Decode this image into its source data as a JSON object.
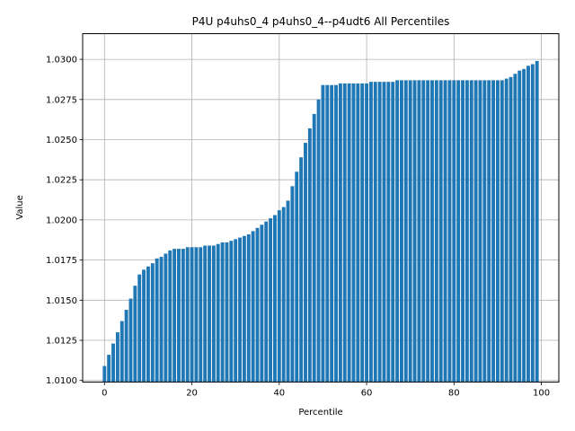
{
  "chart_data": {
    "type": "bar",
    "title": "P4U p4uhs0_4 p4uhs0_4--p4udt6 All Percentiles",
    "xlabel": "Percentile",
    "ylabel": "Value",
    "xlim": [
      -5,
      104
    ],
    "ylim": [
      1.0099,
      1.0316
    ],
    "grid": true,
    "color": "#1f77b4",
    "x_ticks": [
      0,
      20,
      40,
      60,
      80,
      100
    ],
    "x_tick_labels": [
      "0",
      "20",
      "40",
      "60",
      "80",
      "100"
    ],
    "y_ticks": [
      1.01,
      1.0125,
      1.015,
      1.0175,
      1.02,
      1.0225,
      1.025,
      1.0275,
      1.03
    ],
    "y_tick_labels": [
      "1.0100",
      "1.0125",
      "1.0150",
      "1.0175",
      "1.0200",
      "1.0225",
      "1.0250",
      "1.0275",
      "1.0300"
    ],
    "x": [
      0,
      1,
      2,
      3,
      4,
      5,
      6,
      7,
      8,
      9,
      10,
      11,
      12,
      13,
      14,
      15,
      16,
      17,
      18,
      19,
      20,
      21,
      22,
      23,
      24,
      25,
      26,
      27,
      28,
      29,
      30,
      31,
      32,
      33,
      34,
      35,
      36,
      37,
      38,
      39,
      40,
      41,
      42,
      43,
      44,
      45,
      46,
      47,
      48,
      49,
      50,
      51,
      52,
      53,
      54,
      55,
      56,
      57,
      58,
      59,
      60,
      61,
      62,
      63,
      64,
      65,
      66,
      67,
      68,
      69,
      70,
      71,
      72,
      73,
      74,
      75,
      76,
      77,
      78,
      79,
      80,
      81,
      82,
      83,
      84,
      85,
      86,
      87,
      88,
      89,
      90,
      91,
      92,
      93,
      94,
      95,
      96,
      97,
      98,
      99
    ],
    "values": [
      1.0109,
      1.0116,
      1.0123,
      1.013,
      1.0137,
      1.0144,
      1.0151,
      1.0159,
      1.0166,
      1.0169,
      1.0171,
      1.0173,
      1.0176,
      1.0177,
      1.0179,
      1.0181,
      1.0182,
      1.0182,
      1.0182,
      1.0183,
      1.0183,
      1.0183,
      1.0183,
      1.0184,
      1.0184,
      1.0184,
      1.0185,
      1.0186,
      1.0186,
      1.0187,
      1.0188,
      1.0189,
      1.019,
      1.0191,
      1.0193,
      1.0195,
      1.0197,
      1.0199,
      1.0201,
      1.0203,
      1.0206,
      1.0208,
      1.0212,
      1.0221,
      1.023,
      1.0239,
      1.0248,
      1.0257,
      1.0266,
      1.0275,
      1.0284,
      1.0284,
      1.0284,
      1.0284,
      1.0285,
      1.0285,
      1.0285,
      1.0285,
      1.0285,
      1.0285,
      1.0285,
      1.0286,
      1.0286,
      1.0286,
      1.0286,
      1.0286,
      1.0286,
      1.0287,
      1.0287,
      1.0287,
      1.0287,
      1.0287,
      1.0287,
      1.0287,
      1.0287,
      1.0287,
      1.0287,
      1.0287,
      1.0287,
      1.0287,
      1.0287,
      1.0287,
      1.0287,
      1.0287,
      1.0287,
      1.0287,
      1.0287,
      1.0287,
      1.0287,
      1.0287,
      1.0287,
      1.0287,
      1.0288,
      1.0289,
      1.0291,
      1.0293,
      1.0294,
      1.0296,
      1.0297,
      1.0299
    ]
  }
}
